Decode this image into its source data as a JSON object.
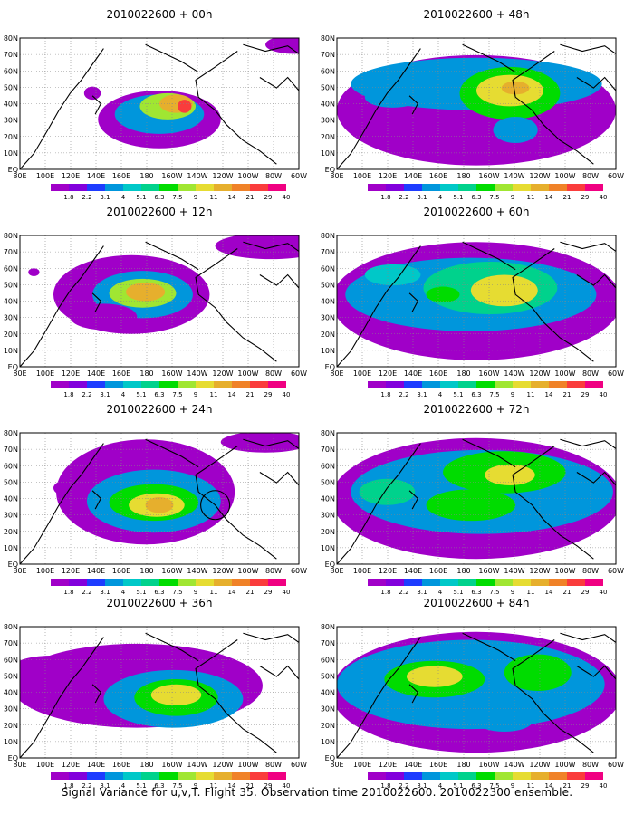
{
  "caption": "Signal Variance for u,v,T. Flight 35. Observation time 2010022600. 2010022300 ensemble.",
  "lat_labels": [
    "80N",
    "70N",
    "60N",
    "50N",
    "40N",
    "30N",
    "20N",
    "10N",
    "EQ"
  ],
  "lon_labels": [
    "80E",
    "100E",
    "120E",
    "140E",
    "160E",
    "180",
    "160W",
    "140W",
    "120W",
    "100W",
    "80W",
    "60W"
  ],
  "colorbar": {
    "labels": [
      "1.8",
      "2.2",
      "3.1",
      "4",
      "5.1",
      "6.3",
      "7.5",
      "9",
      "11",
      "14",
      "21",
      "29",
      "40"
    ],
    "colors": [
      "#a000c8",
      "#8200dc",
      "#1e3cff",
      "#0096dc",
      "#00c8c8",
      "#00d28c",
      "#00dc00",
      "#a0e632",
      "#e6dc32",
      "#e6af2d",
      "#f08228",
      "#fa3c3c",
      "#f00082"
    ]
  },
  "panels": [
    {
      "id": "p00",
      "title": "2010022600 + 00h"
    },
    {
      "id": "p48",
      "title": "2010022600 + 48h"
    },
    {
      "id": "p12",
      "title": "2010022600 + 12h"
    },
    {
      "id": "p60",
      "title": "2010022600 + 60h"
    },
    {
      "id": "p24",
      "title": "2010022600 + 24h"
    },
    {
      "id": "p72",
      "title": "2010022600 + 72h"
    },
    {
      "id": "p36",
      "title": "2010022600 + 36h"
    },
    {
      "id": "p84",
      "title": "2010022600 + 84h"
    }
  ]
}
